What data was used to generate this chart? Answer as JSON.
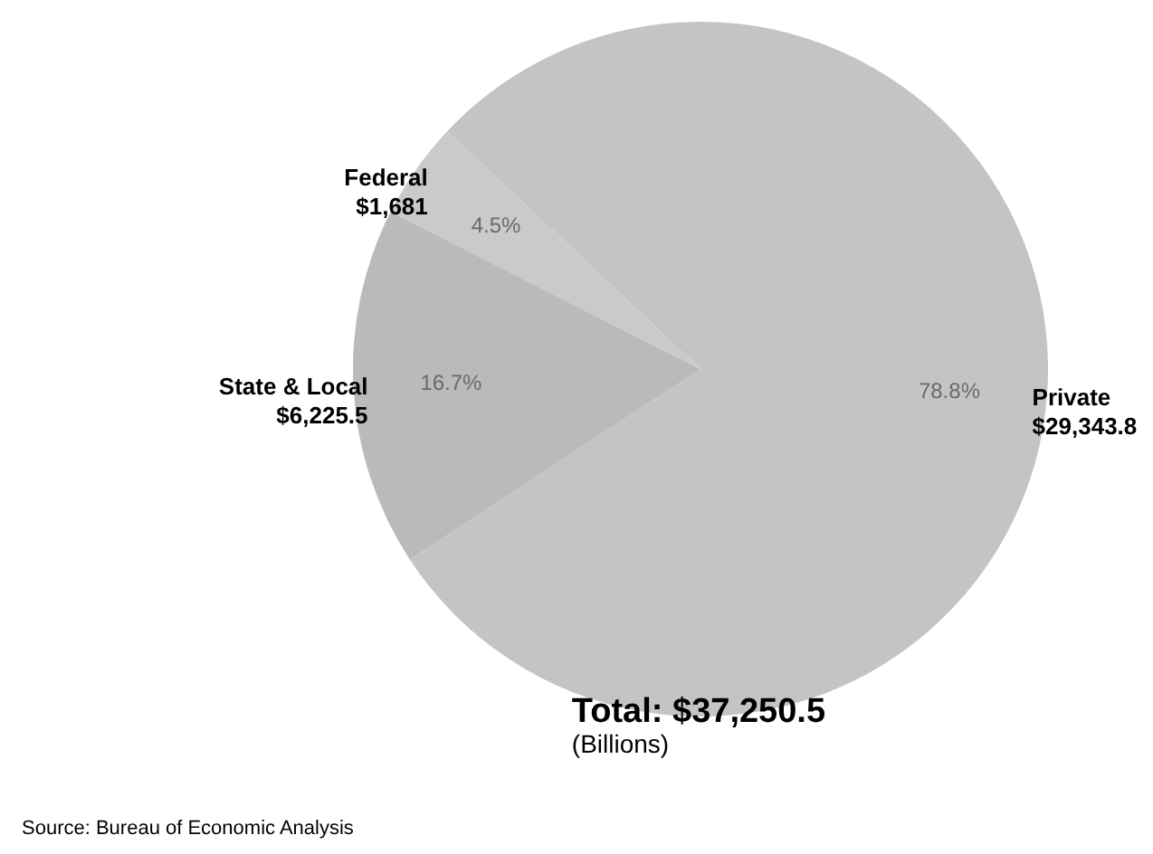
{
  "chart_data": {
    "type": "pie",
    "title": "Total: $37,250.5",
    "subtitle": "(Billions)",
    "categories": [
      "Private",
      "State & Local",
      "Federal"
    ],
    "values": [
      29343.8,
      6225.5,
      1681
    ],
    "colors": [
      "#c4c4c4",
      "#bababa",
      "#cacaca"
    ],
    "value_labels": [
      "$29,343.8",
      "$6,225.5",
      "$1,681"
    ],
    "annotations": [
      {
        "text": "78.8%",
        "x": "Private"
      },
      {
        "text": "16.7%",
        "x": "State & Local"
      },
      {
        "text": "4.5%",
        "x": "Federal"
      },
      "Source: Bureau of Economic Analysis"
    ]
  }
}
